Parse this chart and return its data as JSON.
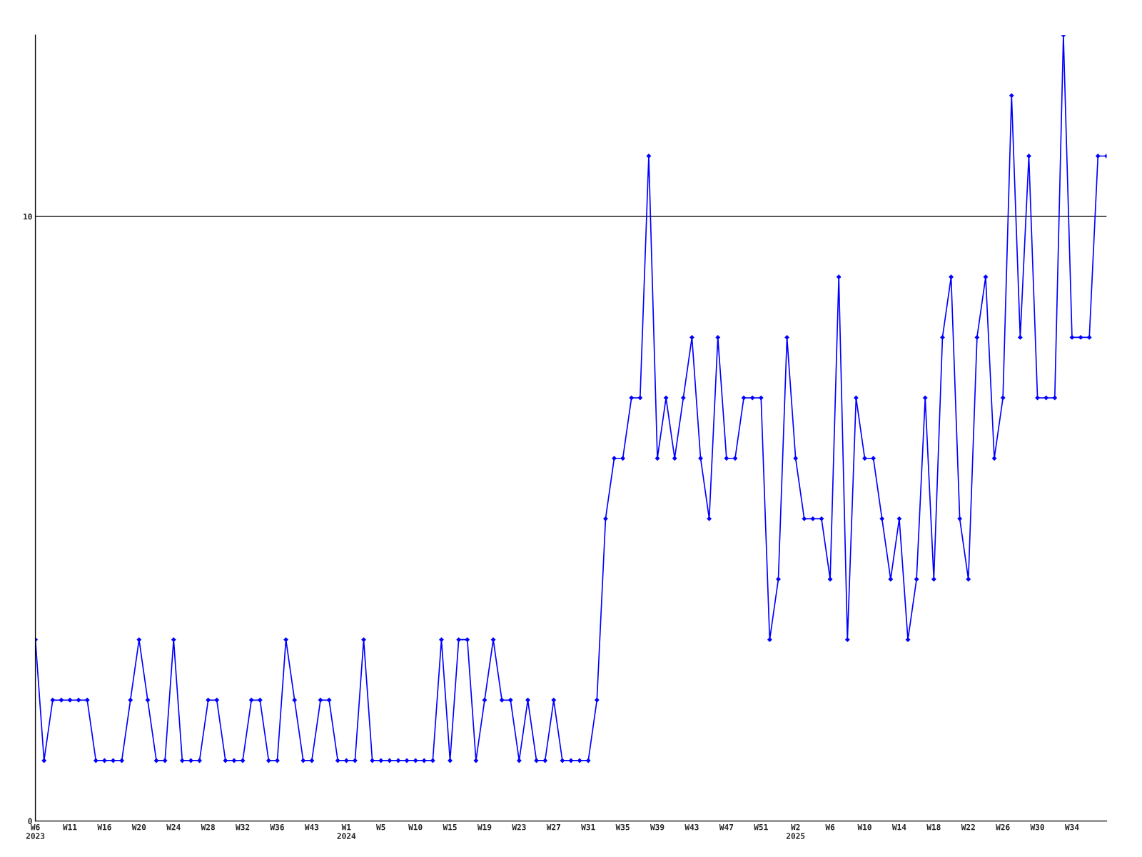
{
  "chart_data": {
    "type": "line",
    "categories": [
      "W6\n2023",
      null,
      null,
      null,
      "W11",
      null,
      null,
      null,
      "W16",
      null,
      null,
      null,
      "W20",
      null,
      null,
      null,
      "W24",
      null,
      null,
      null,
      "W28",
      null,
      null,
      null,
      "W32",
      null,
      null,
      null,
      "W36",
      null,
      null,
      null,
      "W43",
      null,
      null,
      null,
      "W1\n2024",
      null,
      null,
      null,
      "W5",
      null,
      null,
      null,
      "W10",
      null,
      null,
      null,
      "W15",
      null,
      null,
      null,
      "W19",
      null,
      null,
      null,
      "W23",
      null,
      null,
      null,
      "W27",
      null,
      null,
      null,
      "W31",
      null,
      null,
      null,
      "W35",
      null,
      null,
      null,
      "W39",
      null,
      null,
      null,
      "W43",
      null,
      null,
      null,
      "W47",
      null,
      null,
      null,
      "W51",
      null,
      null,
      null,
      "W2\n2025",
      null,
      null,
      null,
      "W6",
      null,
      null,
      null,
      "W10",
      null,
      null,
      null,
      "W14",
      null,
      null,
      null,
      "W18",
      null,
      null,
      null,
      "W22",
      null,
      null,
      null,
      "W26",
      null,
      null,
      null,
      "W30",
      null,
      null,
      null,
      "W34",
      null,
      null,
      null,
      null
    ],
    "series": [
      {
        "color": "#0000ff",
        "values": [
          3,
          1,
          2,
          2,
          2,
          2,
          2,
          1,
          1,
          1,
          1,
          2,
          3,
          2,
          1,
          1,
          3,
          1,
          1,
          1,
          2,
          2,
          1,
          1,
          1,
          2,
          2,
          1,
          1,
          3,
          2,
          1,
          1,
          2,
          2,
          1,
          1,
          1,
          3,
          1,
          1,
          1,
          1,
          1,
          1,
          1,
          1,
          3,
          1,
          3,
          3,
          1,
          2,
          3,
          2,
          2,
          1,
          2,
          1,
          1,
          2,
          1,
          1,
          1,
          1,
          2,
          5,
          6,
          6,
          7,
          7,
          11,
          6,
          7,
          6,
          7,
          8,
          6,
          5,
          8,
          6,
          6,
          7,
          7,
          7,
          3,
          4,
          8,
          6,
          5,
          5,
          5,
          4,
          9,
          3,
          7,
          6,
          6,
          5,
          4,
          5,
          3,
          4,
          7,
          4,
          8,
          9,
          5,
          4,
          8,
          9,
          6,
          7,
          12,
          8,
          11,
          7,
          7,
          7,
          13,
          8,
          8,
          8,
          11,
          11
        ]
      }
    ],
    "ylim": [
      0,
      13
    ],
    "yticks": [
      0,
      10
    ],
    "grid": "y",
    "marker": "diamond",
    "line_style": "solid"
  }
}
